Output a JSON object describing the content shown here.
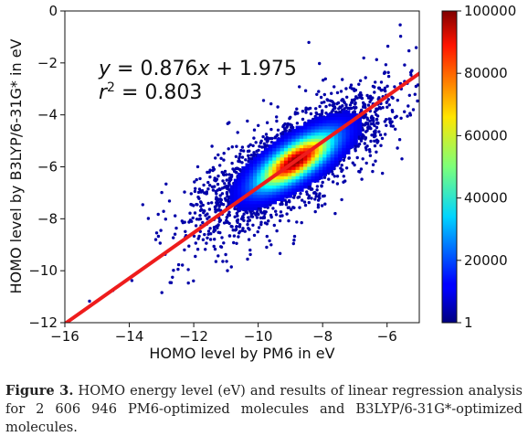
{
  "chart_data": {
    "type": "heatmap",
    "title": "",
    "xlabel": "HOMO level by PM6 in eV",
    "ylabel": "HOMO level by B3LYP/6-31G* in eV",
    "xlim": [
      -16,
      -5
    ],
    "ylim": [
      -12,
      0
    ],
    "x_ticks": [
      -16,
      -14,
      -12,
      -10,
      -8,
      -6
    ],
    "y_ticks": [
      -12,
      -10,
      -8,
      -6,
      -4,
      -2,
      0
    ],
    "x_tick_labels": [
      "−16",
      "−14",
      "−12",
      "−10",
      "−8",
      "−6"
    ],
    "y_tick_labels": [
      "−12",
      "−10",
      "−8",
      "−6",
      "−4",
      "−2",
      "0"
    ],
    "density": {
      "center": [
        -8.9,
        -5.82
      ],
      "peak_count": 100000,
      "major_axis_direction": [
        1,
        0.876
      ]
    },
    "colorbar": {
      "colormap": "jet",
      "range": [
        1,
        100000
      ],
      "ticks": [
        1,
        20000,
        40000,
        60000,
        80000,
        100000
      ],
      "tick_labels": [
        "1",
        "20000",
        "40000",
        "60000",
        "80000",
        "100000"
      ]
    },
    "regression": {
      "slope": 0.876,
      "intercept": 1.975,
      "r2": 0.803,
      "color": "#ee1c1c"
    },
    "annotation_lines": [
      "y = 0.876x + 1.975",
      "r² = 0.803"
    ]
  },
  "caption": {
    "label": "Figure 3.",
    "text": "HOMO energy level (eV) and results of linear regression analysis for 2 606 946 PM6-optimized molecules and B3LYP/6-31G*-optimized molecules."
  }
}
